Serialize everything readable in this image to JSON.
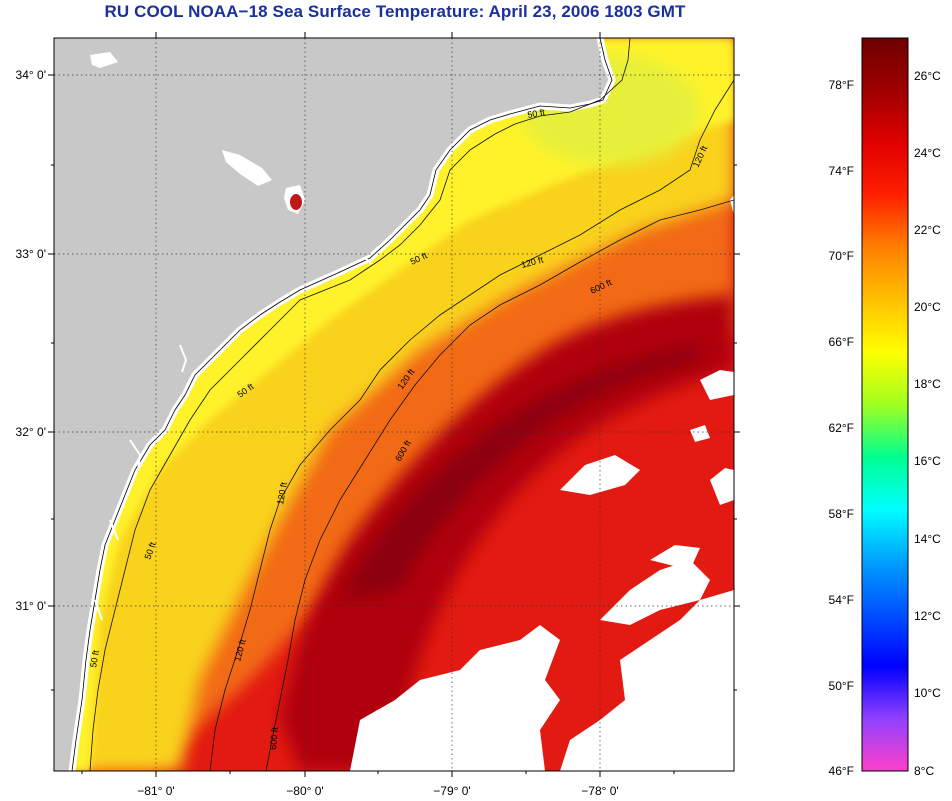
{
  "title": "RU COOL  NOAA−18  Sea Surface Temperature:  April 23, 2006 1803 GMT",
  "map": {
    "latitude_labels": [
      "34° 0'",
      "33° 0'",
      "32° 0'",
      "31° 0'"
    ],
    "longitude_labels": [
      "−81° 0'",
      "−80° 0'",
      "−79° 0'",
      "−78° 0'"
    ],
    "contour_labels": [
      "50 ft",
      "50 ft",
      "50 ft",
      "50 ft",
      "50 ft",
      "120 ft",
      "120 ft",
      "120 ft",
      "120 ft",
      "120 ft",
      "600 ft",
      "600 ft",
      "600 ft"
    ],
    "colors": {
      "land": "#c8c8c8",
      "cloud": "#ffffff",
      "gulf_stream": "#a8000c",
      "warm": "#e21a12",
      "shelf": "#f9d21a",
      "coastal": "#fff22a",
      "grid": "#333333"
    }
  },
  "colorbar": {
    "fahrenheit_labels": [
      "78°F",
      "74°F",
      "70°F",
      "66°F",
      "62°F",
      "58°F",
      "54°F",
      "50°F",
      "46°F"
    ],
    "celsius_labels": [
      "26°C",
      "24°C",
      "22°C",
      "20°C",
      "18°C",
      "16°C",
      "14°C",
      "12°C",
      "10°C",
      "8°C"
    ],
    "gradient_stops": [
      "#ff40c8",
      "#9040ff",
      "#0000ff",
      "#0050ff",
      "#00a0ff",
      "#00ffff",
      "#00ff90",
      "#a0ff20",
      "#ffff00",
      "#ffc000",
      "#ff8000",
      "#ff2000",
      "#e00000",
      "#a00000",
      "#6e0000"
    ]
  }
}
